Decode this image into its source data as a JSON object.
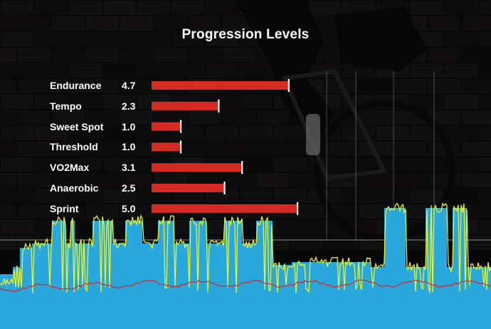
{
  "chart_data": {
    "type": "bar",
    "orientation": "horizontal",
    "title": "Progression Levels",
    "categories": [
      "Endurance",
      "Tempo",
      "Sweet Spot",
      "Threshold",
      "VO2Max",
      "Anaerobic",
      "Sprint"
    ],
    "values": [
      4.7,
      2.3,
      1.0,
      1.0,
      3.1,
      2.5,
      5.0
    ],
    "value_labels": [
      "4.7",
      "2.3",
      "1.0",
      "1.0",
      "3.1",
      "2.5",
      "5.0"
    ],
    "xlim": [
      0,
      5
    ],
    "grid": false,
    "legend": "none",
    "colors": {
      "bar": "#d62b22",
      "marker": "#ffffff",
      "power_fill": "#29a8dd",
      "power_line": "#eef21e",
      "heart_rate_line": "#d9262a",
      "background": "#0d0d0d"
    }
  }
}
